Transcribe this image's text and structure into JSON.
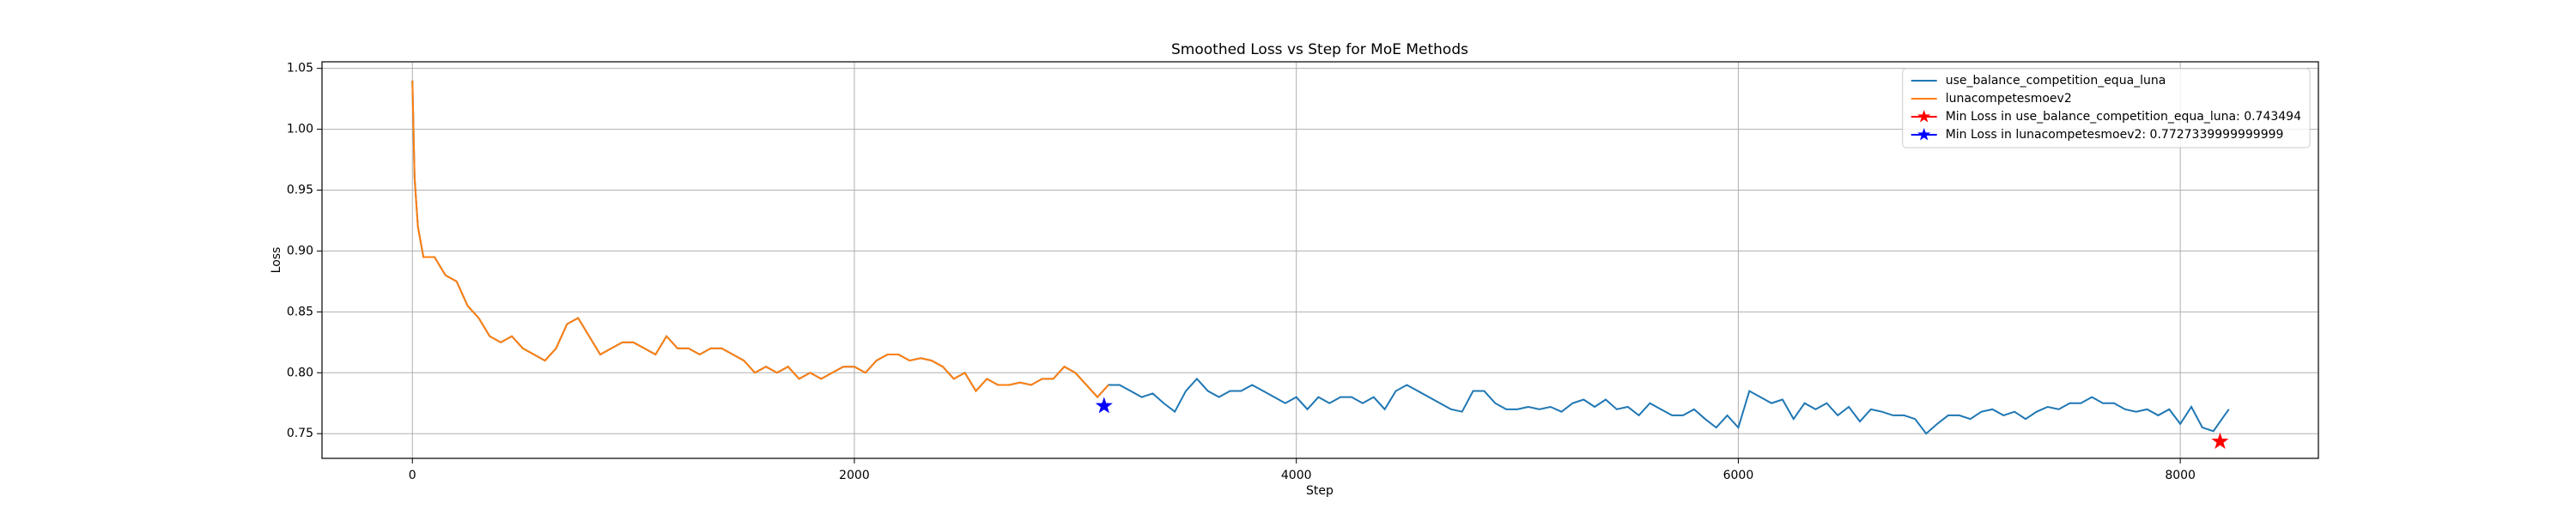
{
  "chart_data": {
    "type": "line",
    "title": "Smoothed Loss vs Step for MoE Methods",
    "xlabel": "Step",
    "ylabel": "Loss",
    "xlim": [
      -409,
      8625
    ],
    "ylim": [
      0.7297,
      1.0554
    ],
    "xticks": [
      0,
      2000,
      4000,
      6000,
      8000
    ],
    "yticks": [
      0.75,
      {
        "value": 0.8,
        "label": "0.80"
      },
      0.85,
      {
        "value": 0.9,
        "label": "0.90"
      },
      0.95,
      {
        "value": 1.0,
        "label": "1.00"
      },
      1.05
    ],
    "grid": true,
    "legend": "upper right",
    "series": [
      {
        "name": "use_balance_competition_equa_luna",
        "color": "#1f77b4",
        "x": [
          0,
          10,
          25,
          50,
          100,
          150,
          200,
          250,
          300,
          350,
          400,
          450,
          500,
          550,
          600,
          650,
          700,
          750,
          800,
          850,
          900,
          950,
          1000,
          1050,
          1100,
          1150,
          1200,
          1250,
          1300,
          1350,
          1400,
          1450,
          1500,
          1550,
          1600,
          1650,
          1700,
          1750,
          1800,
          1850,
          1900,
          1950,
          2000,
          2050,
          2100,
          2150,
          2200,
          2250,
          2300,
          2350,
          2400,
          2450,
          2500,
          2550,
          2600,
          2650,
          2700,
          2750,
          2800,
          2850,
          2900,
          2950,
          3000,
          3050,
          3100,
          3150,
          3200,
          3250,
          3300,
          3350,
          3400,
          3450,
          3500,
          3550,
          3600,
          3650,
          3700,
          3750,
          3800,
          3850,
          3900,
          3950,
          4000,
          4050,
          4100,
          4150,
          4200,
          4250,
          4300,
          4350,
          4400,
          4450,
          4500,
          4550,
          4600,
          4650,
          4700,
          4750,
          4800,
          4850,
          4900,
          4950,
          5000,
          5050,
          5100,
          5150,
          5200,
          5250,
          5300,
          5350,
          5400,
          5450,
          5500,
          5550,
          5600,
          5650,
          5700,
          5750,
          5800,
          5850,
          5900,
          5950,
          6000,
          6050,
          6100,
          6150,
          6200,
          6250,
          6300,
          6350,
          6400,
          6450,
          6500,
          6550,
          6600,
          6650,
          6700,
          6750,
          6800,
          6850,
          6900,
          6950,
          7000,
          7050,
          7100,
          7150,
          7200,
          7250,
          7300,
          7350,
          7400,
          7450,
          7500,
          7550,
          7600,
          7650,
          7700,
          7750,
          7800,
          7850,
          7900,
          7950,
          8000,
          8050,
          8100,
          8150,
          8200,
          8220
        ],
        "values": [
          1.04,
          0.96,
          0.92,
          0.895,
          0.895,
          0.88,
          0.875,
          0.855,
          0.845,
          0.83,
          0.825,
          0.83,
          0.82,
          0.815,
          0.81,
          0.82,
          0.84,
          0.845,
          0.83,
          0.815,
          0.82,
          0.825,
          0.825,
          0.82,
          0.815,
          0.83,
          0.82,
          0.82,
          0.815,
          0.82,
          0.82,
          0.815,
          0.81,
          0.8,
          0.805,
          0.8,
          0.805,
          0.795,
          0.8,
          0.795,
          0.8,
          0.805,
          0.805,
          0.8,
          0.81,
          0.815,
          0.815,
          0.81,
          0.812,
          0.81,
          0.805,
          0.795,
          0.8,
          0.785,
          0.795,
          0.79,
          0.79,
          0.792,
          0.79,
          0.795,
          0.795,
          0.805,
          0.8,
          0.79,
          0.78,
          0.79,
          0.79,
          0.785,
          0.78,
          0.783,
          0.775,
          0.768,
          0.785,
          0.795,
          0.785,
          0.78,
          0.785,
          0.785,
          0.79,
          0.785,
          0.78,
          0.775,
          0.78,
          0.77,
          0.78,
          0.775,
          0.78,
          0.78,
          0.775,
          0.78,
          0.77,
          0.785,
          0.79,
          0.785,
          0.78,
          0.775,
          0.77,
          0.768,
          0.785,
          0.785,
          0.775,
          0.77,
          0.77,
          0.772,
          0.77,
          0.772,
          0.768,
          0.775,
          0.778,
          0.772,
          0.778,
          0.77,
          0.772,
          0.765,
          0.775,
          0.77,
          0.765,
          0.765,
          0.77,
          0.762,
          0.755,
          0.765,
          0.755,
          0.785,
          0.78,
          0.775,
          0.778,
          0.762,
          0.775,
          0.77,
          0.775,
          0.765,
          0.772,
          0.76,
          0.77,
          0.768,
          0.765,
          0.765,
          0.762,
          0.75,
          0.758,
          0.765,
          0.765,
          0.762,
          0.768,
          0.77,
          0.765,
          0.768,
          0.762,
          0.768,
          0.772,
          0.77,
          0.775,
          0.775,
          0.78,
          0.775,
          0.775,
          0.77,
          0.768,
          0.77,
          0.765,
          0.77,
          0.758,
          0.772,
          0.755,
          0.752,
          0.765,
          0.77
        ]
      },
      {
        "name": "lunacompetesmoev2",
        "color": "#ff7f0e",
        "x": [
          0,
          10,
          25,
          50,
          100,
          150,
          200,
          250,
          300,
          350,
          400,
          450,
          500,
          550,
          600,
          650,
          700,
          750,
          800,
          850,
          900,
          950,
          1000,
          1050,
          1100,
          1150,
          1200,
          1250,
          1300,
          1350,
          1400,
          1450,
          1500,
          1550,
          1600,
          1650,
          1700,
          1750,
          1800,
          1850,
          1900,
          1950,
          2000,
          2050,
          2100,
          2150,
          2200,
          2250,
          2300,
          2350,
          2400,
          2450,
          2500,
          2550,
          2600,
          2650,
          2700,
          2750,
          2800,
          2850,
          2900,
          2950,
          3000,
          3050,
          3100,
          3150
        ],
        "values": [
          1.04,
          0.96,
          0.92,
          0.895,
          0.895,
          0.88,
          0.875,
          0.855,
          0.845,
          0.83,
          0.825,
          0.83,
          0.82,
          0.815,
          0.81,
          0.82,
          0.84,
          0.845,
          0.83,
          0.815,
          0.82,
          0.825,
          0.825,
          0.82,
          0.815,
          0.83,
          0.82,
          0.82,
          0.815,
          0.82,
          0.82,
          0.815,
          0.81,
          0.8,
          0.805,
          0.8,
          0.805,
          0.795,
          0.8,
          0.795,
          0.8,
          0.805,
          0.805,
          0.8,
          0.81,
          0.815,
          0.815,
          0.81,
          0.812,
          0.81,
          0.805,
          0.795,
          0.8,
          0.785,
          0.795,
          0.79,
          0.79,
          0.792,
          0.79,
          0.795,
          0.795,
          0.805,
          0.8,
          0.79,
          0.78,
          0.79
        ]
      }
    ],
    "markers": [
      {
        "name": "Min Loss in use_balance_competition_equa_luna: 0.743494",
        "color": "red",
        "x": 8180,
        "y": 0.743494
      },
      {
        "name": "Min Loss in lunacompetesmoev2: 0.7727339999999999",
        "color": "blue",
        "x": 3130,
        "y": 0.7727339999999999
      }
    ]
  }
}
